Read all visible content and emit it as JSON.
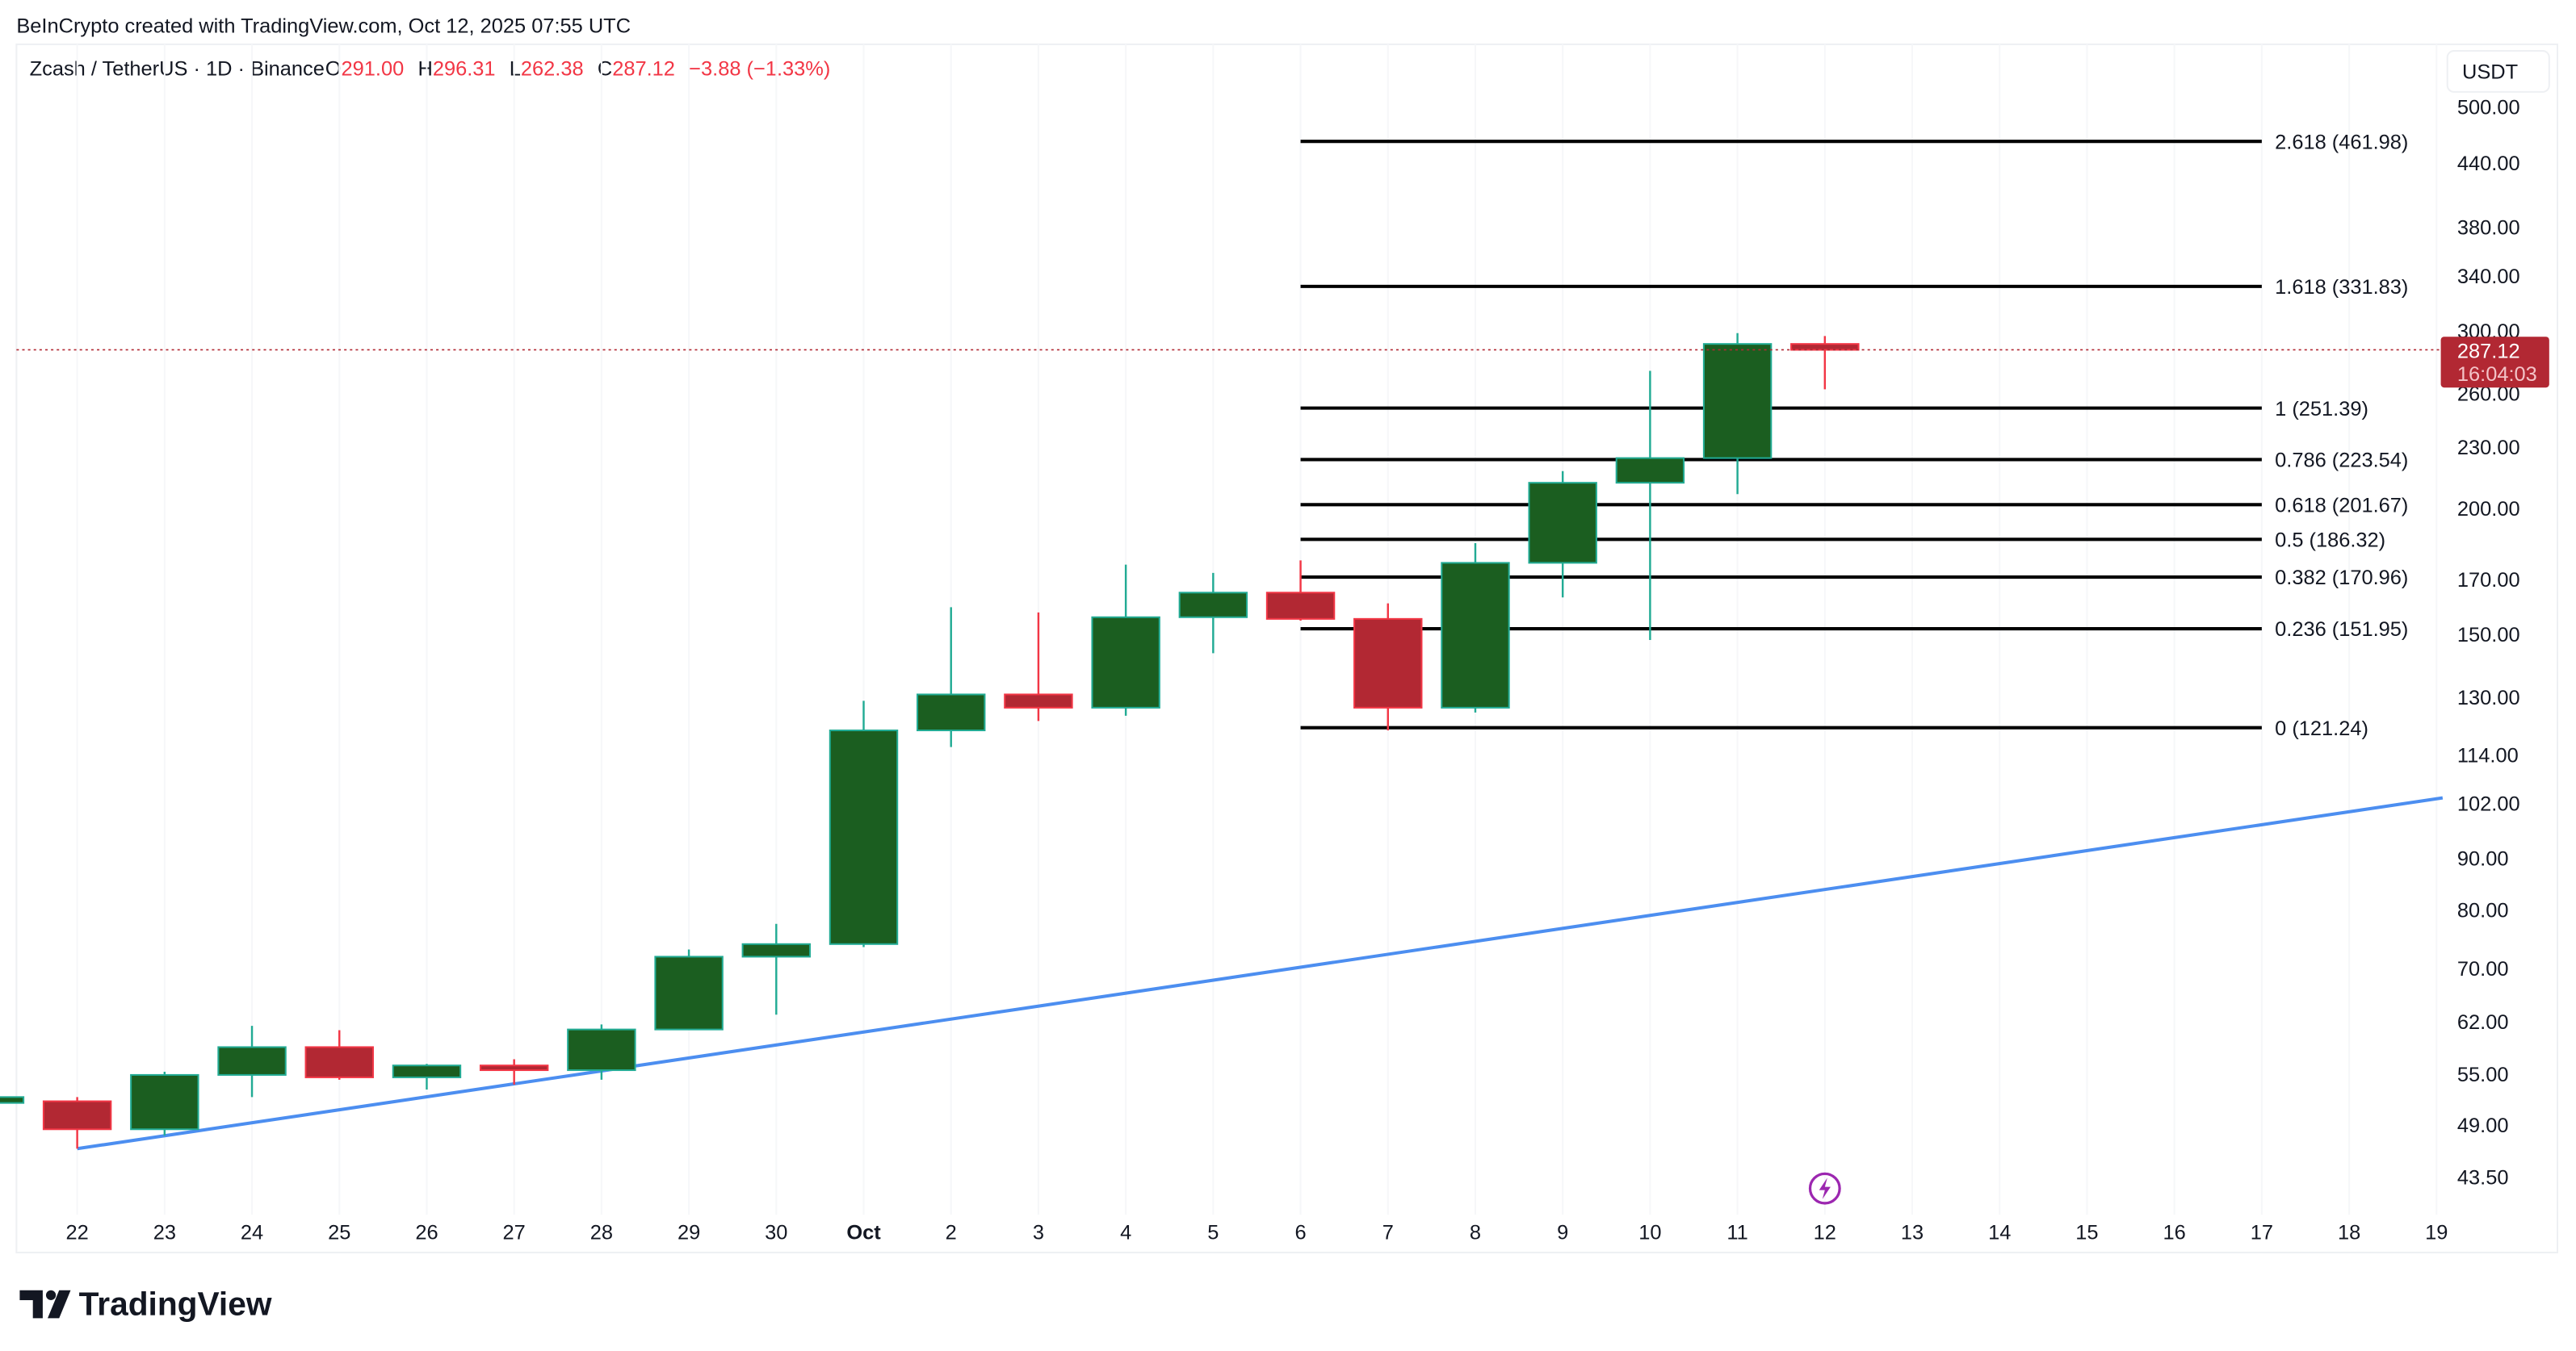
{
  "header": {
    "credit": "BeInCrypto created with TradingView.com, Oct 12, 2025 07:55 UTC",
    "symbol": "Zcash / TetherUS · 1D · Binance",
    "o_label": "O",
    "o_value": "291.00",
    "h_label": "H",
    "h_value": "296.31",
    "l_label": "L",
    "l_value": "262.38",
    "c_label": "C",
    "c_value": "287.12",
    "change": "−3.88 (−1.33%)"
  },
  "price_axis": {
    "currency": "USDT",
    "current_price": "287.12",
    "countdown": "16:04:03"
  },
  "logo": {
    "text": "TradingView"
  },
  "colors": {
    "up_fill": "#1b5e20",
    "up_border": "#22ab94",
    "down_fill": "#b22833",
    "down_border": "#f23645",
    "trend": "#4c8ef0",
    "alert": "#9c27b0"
  },
  "chart_data": {
    "type": "candlestick",
    "title": "Zcash / TetherUS · 1D · Binance",
    "y_scale": "log",
    "ylim": [
      41,
      560
    ],
    "y_ticks": [
      "500.00",
      "440.00",
      "380.00",
      "340.00",
      "300.00",
      "260.00",
      "230.00",
      "200.00",
      "170.00",
      "150.00",
      "130.00",
      "114.00",
      "102.00",
      "90.00",
      "80.00",
      "70.00",
      "62.00",
      "55.00",
      "49.00",
      "43.50"
    ],
    "x_ticks": [
      "22",
      "23",
      "24",
      "25",
      "26",
      "27",
      "28",
      "29",
      "30",
      "Oct",
      "2",
      "3",
      "4",
      "5",
      "6",
      "7",
      "8",
      "9",
      "10",
      "11",
      "12",
      "13",
      "14",
      "15",
      "16",
      "17",
      "18",
      "19"
    ],
    "candles": [
      {
        "date": "Sep 21",
        "o": 51.5,
        "h": 52.2,
        "l": 51.5,
        "c": 52.2
      },
      {
        "date": "Sep 22",
        "o": 51.7,
        "h": 52.2,
        "l": 46.4,
        "c": 48.5
      },
      {
        "date": "Sep 23",
        "o": 48.5,
        "h": 55.3,
        "l": 47.8,
        "c": 54.9
      },
      {
        "date": "Sep 24",
        "o": 54.9,
        "h": 61.4,
        "l": 52.2,
        "c": 58.5
      },
      {
        "date": "Sep 25",
        "o": 58.5,
        "h": 60.8,
        "l": 54.3,
        "c": 54.6
      },
      {
        "date": "Sep 26",
        "o": 54.6,
        "h": 56.3,
        "l": 53.1,
        "c": 56.1
      },
      {
        "date": "Sep 27",
        "o": 56.1,
        "h": 56.9,
        "l": 53.7,
        "c": 55.5
      },
      {
        "date": "Sep 28",
        "o": 55.5,
        "h": 61.6,
        "l": 54.3,
        "c": 60.9
      },
      {
        "date": "Sep 29",
        "o": 60.9,
        "h": 73.1,
        "l": 60.9,
        "c": 71.9
      },
      {
        "date": "Sep 30",
        "o": 71.9,
        "h": 77.5,
        "l": 63.0,
        "c": 74.0
      },
      {
        "date": "Oct 1",
        "o": 74.0,
        "h": 128.9,
        "l": 73.5,
        "c": 120.5
      },
      {
        "date": "Oct 2",
        "o": 120.5,
        "h": 159.6,
        "l": 116.0,
        "c": 130.8
      },
      {
        "date": "Oct 3",
        "o": 130.8,
        "h": 157.7,
        "l": 123.1,
        "c": 126.9
      },
      {
        "date": "Oct 4",
        "o": 126.9,
        "h": 175.9,
        "l": 124.6,
        "c": 156.0
      },
      {
        "date": "Oct 5",
        "o": 156.0,
        "h": 172.6,
        "l": 143.7,
        "c": 165.0
      },
      {
        "date": "Oct 6",
        "o": 165.0,
        "h": 177.6,
        "l": 154.8,
        "c": 155.4
      },
      {
        "date": "Oct 7",
        "o": 155.4,
        "h": 161.0,
        "l": 120.5,
        "c": 126.9
      },
      {
        "date": "Oct 8",
        "o": 126.9,
        "h": 184.7,
        "l": 125.5,
        "c": 176.6
      },
      {
        "date": "Oct 9",
        "o": 176.6,
        "h": 217.7,
        "l": 163.2,
        "c": 212.0
      },
      {
        "date": "Oct 10",
        "o": 212.0,
        "h": 273.7,
        "l": 148.1,
        "c": 224.3
      },
      {
        "date": "Oct 11",
        "o": 224.3,
        "h": 298.3,
        "l": 206.6,
        "c": 291.0
      },
      {
        "date": "Oct 12",
        "o": 291.0,
        "h": 296.31,
        "l": 262.38,
        "c": 287.12
      }
    ],
    "fib_range_days": [
      "Oct 6",
      "Oct 17"
    ],
    "fib_levels": [
      {
        "label": "2.618 (461.98)",
        "price": 461.98
      },
      {
        "label": "1.618 (331.83)",
        "price": 331.83
      },
      {
        "label": "1 (251.39)",
        "price": 251.39
      },
      {
        "label": "0.786 (223.54)",
        "price": 223.54
      },
      {
        "label": "0.618 (201.67)",
        "price": 201.67
      },
      {
        "label": "0.5 (186.32)",
        "price": 186.32
      },
      {
        "label": "0.382 (170.96)",
        "price": 170.96
      },
      {
        "label": "0.236 (151.95)",
        "price": 151.95
      },
      {
        "label": "0 (121.24)",
        "price": 121.24
      }
    ],
    "trendline": [
      {
        "day_offset_from_sep22": 0,
        "price": 46.4
      },
      {
        "day_offset_from_sep22": 27.07,
        "price": 103.3
      }
    ]
  }
}
